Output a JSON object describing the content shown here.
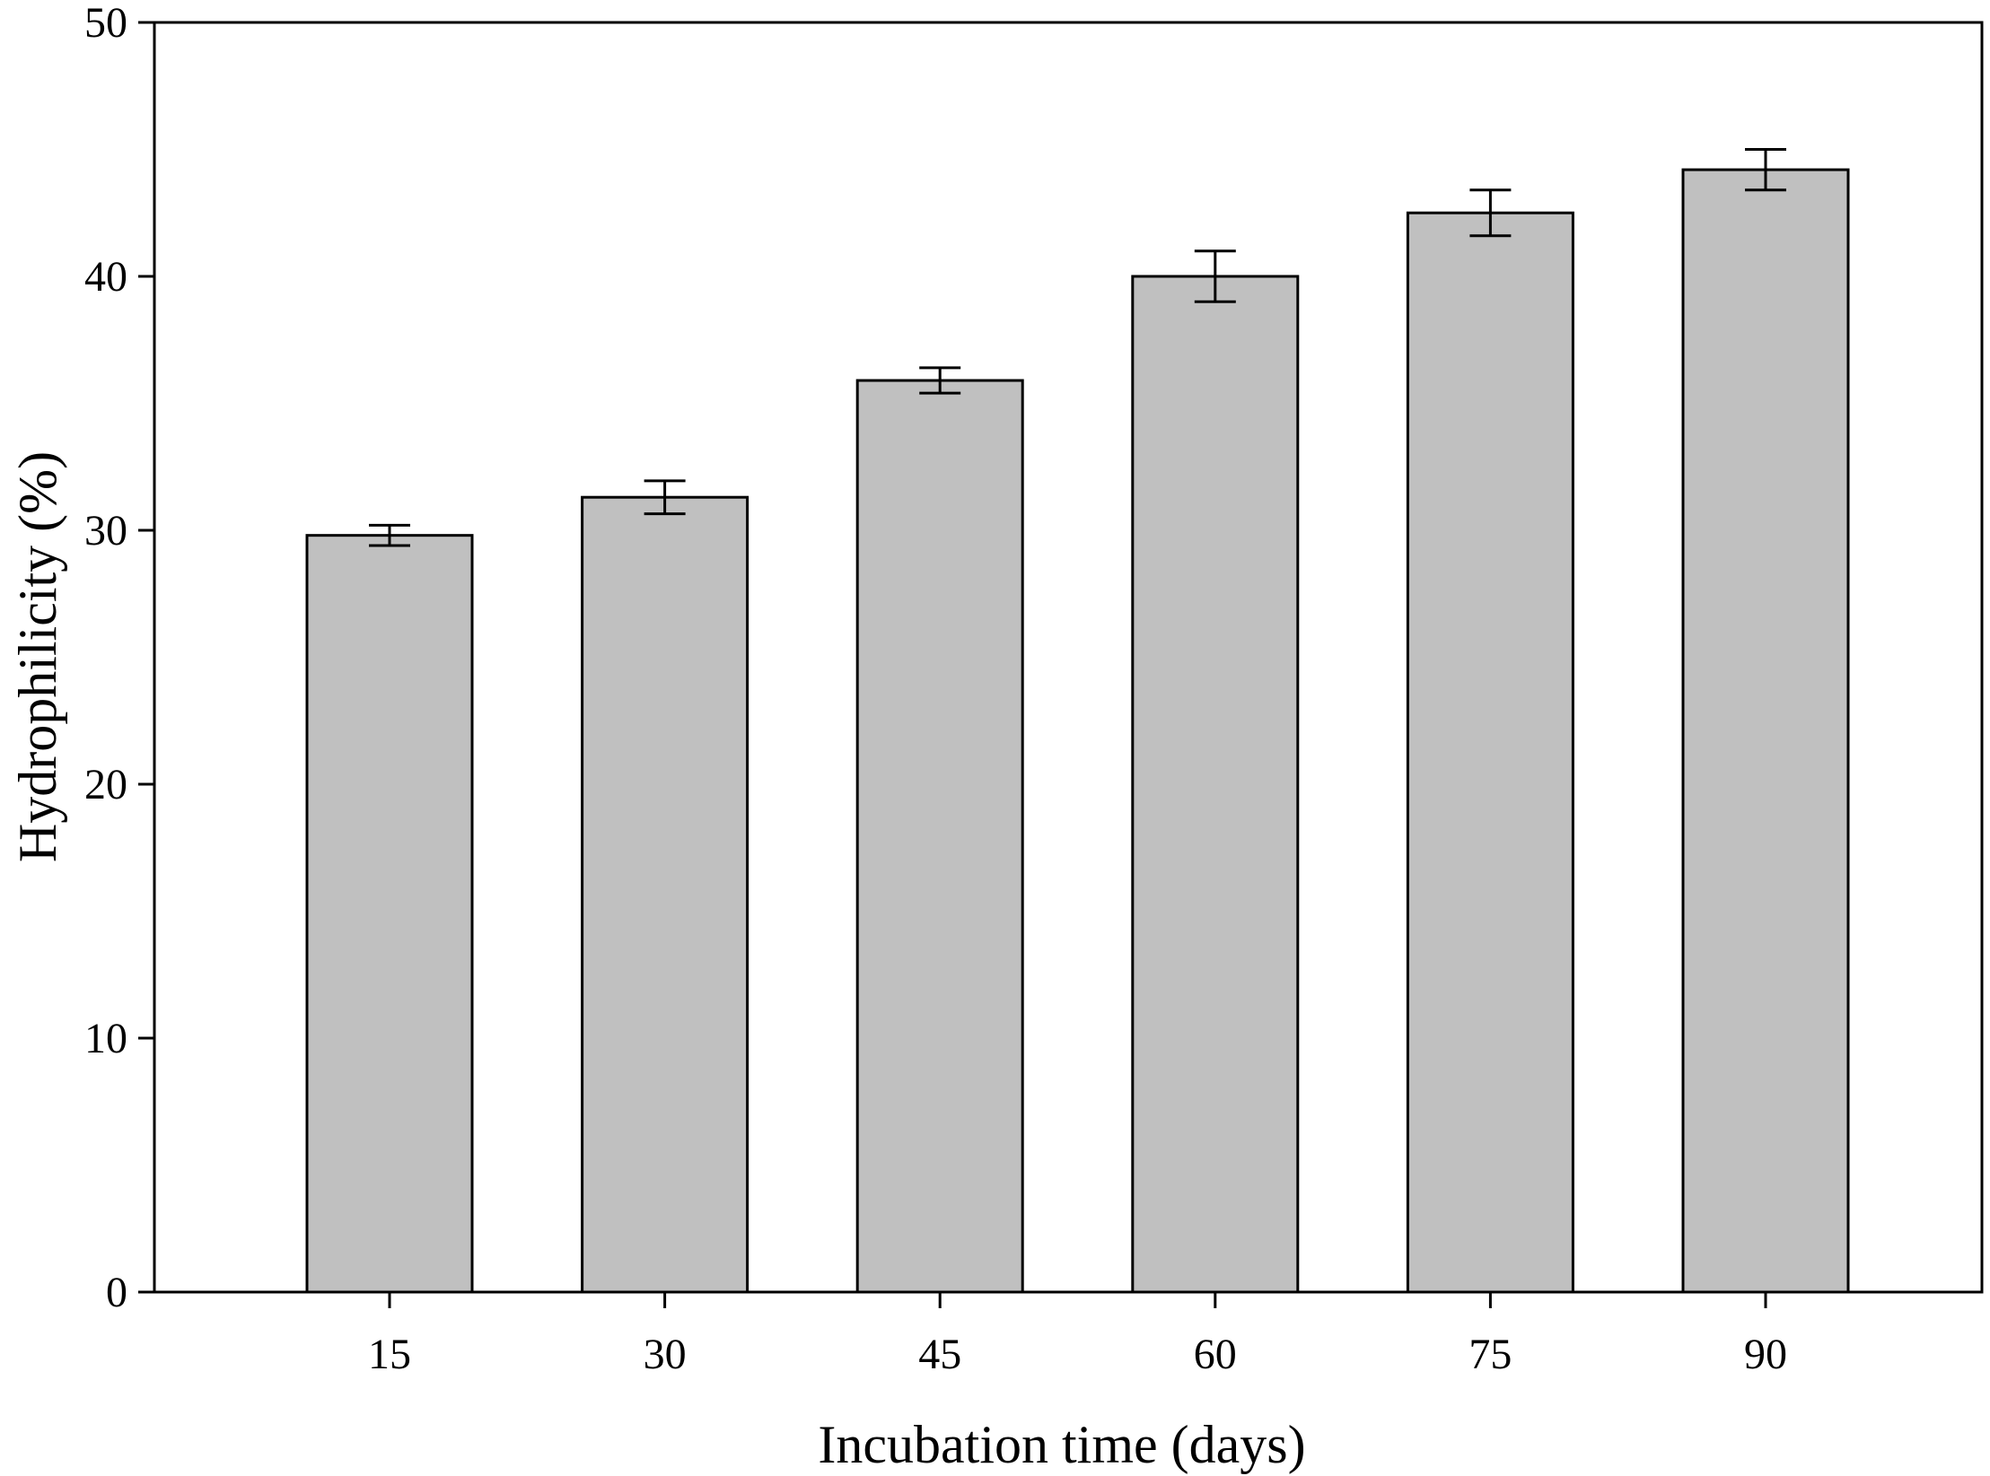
{
  "chart_data": {
    "type": "bar",
    "title": "",
    "xlabel": "Incubation time (days)",
    "ylabel": "Hydrophilicity (%)",
    "categories": [
      "15",
      "30",
      "45",
      "60",
      "75",
      "90"
    ],
    "values": [
      29.8,
      31.3,
      35.9,
      40.0,
      42.5,
      44.2
    ],
    "errors": [
      0.4,
      0.65,
      0.5,
      1.0,
      0.9,
      0.8
    ],
    "ylim": [
      0,
      50
    ],
    "yticks": [
      "0",
      "10",
      "20",
      "30",
      "40",
      "50"
    ],
    "grid": false,
    "legend": "none",
    "bar_color": "#c0c0c0",
    "edge_color": "#000000"
  }
}
